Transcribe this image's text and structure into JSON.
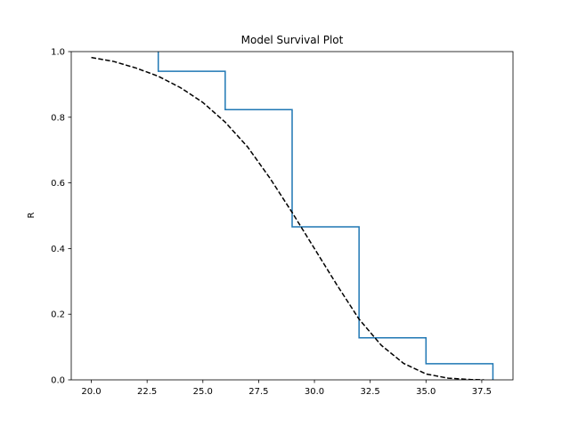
{
  "chart_data": {
    "type": "line",
    "title": "Model Survival Plot",
    "xlabel": "",
    "ylabel": "R",
    "xlim": [
      19.1,
      38.9
    ],
    "ylim": [
      0.0,
      1.0
    ],
    "x_ticks": [
      20.0,
      22.5,
      25.0,
      27.5,
      30.0,
      32.5,
      35.0,
      37.5
    ],
    "x_tick_labels": [
      "20.0",
      "22.5",
      "25.0",
      "27.5",
      "30.0",
      "32.5",
      "35.0",
      "37.5"
    ],
    "y_ticks": [
      0.0,
      0.2,
      0.4,
      0.6,
      0.8,
      1.0
    ],
    "y_tick_labels": [
      "0.0",
      "0.2",
      "0.4",
      "0.6",
      "0.8",
      "1.0"
    ],
    "grid": false,
    "series": [
      {
        "style": "step",
        "color": "#1f77b4",
        "x": [
          23.0,
          23.0,
          26.0,
          26.0,
          29.0,
          29.0,
          32.0,
          32.0,
          35.0,
          35.0,
          38.0,
          38.0
        ],
        "y": [
          1.0,
          0.94,
          0.94,
          0.823,
          0.823,
          0.466,
          0.466,
          0.128,
          0.128,
          0.049,
          0.049,
          0.0
        ]
      },
      {
        "style": "dashed",
        "color": "#000000",
        "x": [
          20.0,
          21.0,
          22.0,
          23.0,
          24.0,
          25.0,
          26.0,
          27.0,
          28.0,
          29.0,
          30.0,
          31.0,
          32.0,
          33.0,
          34.0,
          35.0,
          36.0,
          37.0,
          37.6
        ],
        "y": [
          0.982,
          0.97,
          0.95,
          0.925,
          0.89,
          0.845,
          0.785,
          0.71,
          0.615,
          0.51,
          0.4,
          0.29,
          0.185,
          0.105,
          0.05,
          0.018,
          0.005,
          0.001,
          0.0
        ]
      }
    ]
  }
}
